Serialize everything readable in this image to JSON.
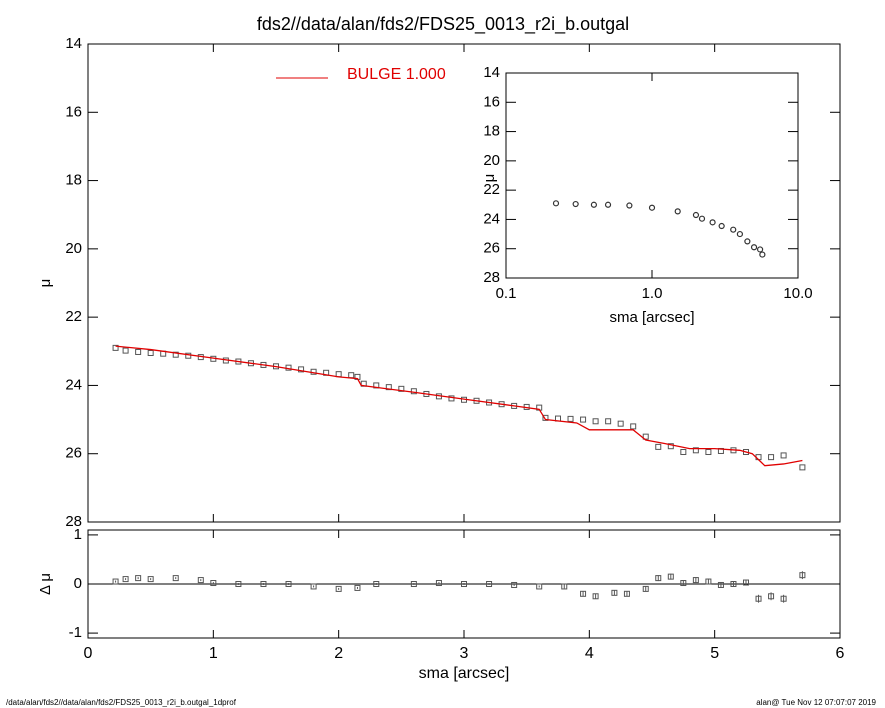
{
  "chart_data": [
    {
      "type": "scatter",
      "title": "fds2//data/alan/fds2/FDS25_0013_r2i_b.outgal",
      "ylabel": "μ",
      "xlim": [
        0,
        6
      ],
      "ylim": [
        14,
        28
      ],
      "invert_y": true,
      "yticks": [
        14,
        16,
        18,
        20,
        22,
        24,
        26,
        28
      ],
      "series": [
        {
          "style": "square",
          "color": "#555555",
          "x": [
            0.22,
            0.3,
            0.4,
            0.5,
            0.6,
            0.7,
            0.8,
            0.9,
            1.0,
            1.1,
            1.2,
            1.3,
            1.4,
            1.5,
            1.6,
            1.7,
            1.8,
            1.9,
            2.0,
            2.1,
            2.15,
            2.2,
            2.3,
            2.4,
            2.5,
            2.6,
            2.7,
            2.8,
            2.9,
            3.0,
            3.1,
            3.2,
            3.3,
            3.4,
            3.5,
            3.6,
            3.65,
            3.75,
            3.85,
            3.95,
            4.05,
            4.15,
            4.25,
            4.35,
            4.45,
            4.55,
            4.65,
            4.75,
            4.85,
            4.95,
            5.05,
            5.15,
            5.25,
            5.35,
            5.45,
            5.55,
            5.7
          ],
          "values": [
            22.9,
            22.98,
            23.02,
            23.05,
            23.07,
            23.1,
            23.13,
            23.17,
            23.22,
            23.27,
            23.3,
            23.35,
            23.4,
            23.44,
            23.48,
            23.53,
            23.6,
            23.63,
            23.67,
            23.7,
            23.75,
            23.95,
            24.0,
            24.05,
            24.1,
            24.17,
            24.25,
            24.32,
            24.38,
            24.42,
            24.45,
            24.5,
            24.55,
            24.6,
            24.63,
            24.65,
            24.95,
            24.97,
            24.98,
            25.0,
            25.05,
            25.05,
            25.12,
            25.2,
            25.5,
            25.8,
            25.78,
            25.95,
            25.9,
            25.95,
            25.92,
            25.9,
            25.95,
            26.1,
            26.1,
            26.05,
            26.4
          ]
        },
        {
          "style": "line",
          "name": "BULGE  1.000",
          "color": "#e00000",
          "x": [
            0.22,
            0.5,
            1.0,
            1.5,
            2.0,
            2.15,
            2.18,
            2.6,
            3.0,
            3.4,
            3.6,
            3.65,
            3.9,
            4.0,
            4.35,
            4.45,
            4.6,
            4.8,
            5.0,
            5.2,
            5.3,
            5.4,
            5.55,
            5.7
          ],
          "values": [
            22.85,
            22.95,
            23.2,
            23.45,
            23.75,
            23.8,
            24.0,
            24.2,
            24.4,
            24.6,
            24.7,
            25.0,
            25.1,
            25.3,
            25.3,
            25.6,
            25.7,
            25.85,
            25.85,
            25.9,
            26.0,
            26.35,
            26.3,
            26.2
          ]
        }
      ]
    },
    {
      "type": "scatter",
      "ylabel": "μ",
      "xlabel": "sma [arcsec]",
      "xscale": "log",
      "xlim": [
        0.1,
        10
      ],
      "xticks": [
        {
          "value": 0.1,
          "label": "0.1"
        },
        {
          "value": 1,
          "label": "1.0"
        },
        {
          "value": 10,
          "label": "10.0"
        }
      ],
      "ylim": [
        14,
        28
      ],
      "invert_y": true,
      "yticks": [
        14,
        16,
        18,
        20,
        22,
        24,
        26,
        28
      ],
      "series": [
        {
          "style": "circle",
          "color": "#333333",
          "x": [
            0.22,
            0.3,
            0.4,
            0.5,
            0.7,
            1.0,
            1.5,
            2.0,
            2.2,
            2.6,
            3.0,
            3.6,
            4.0,
            4.5,
            5.0,
            5.5,
            5.7
          ],
          "values": [
            22.9,
            22.95,
            23.0,
            23.0,
            23.05,
            23.2,
            23.45,
            23.7,
            23.95,
            24.2,
            24.45,
            24.7,
            25.0,
            25.5,
            25.9,
            26.05,
            26.4
          ]
        }
      ]
    },
    {
      "type": "errorbar",
      "ylabel": "Δ μ",
      "xlabel": "sma [arcsec]",
      "xlim": [
        0,
        6
      ],
      "xticks": [
        0,
        1,
        2,
        3,
        4,
        5,
        6
      ],
      "ylim": [
        -1.1,
        1.1
      ],
      "yticks": [
        -1,
        0,
        1
      ],
      "hline": 0,
      "series": [
        {
          "style": "square",
          "color": "#555555",
          "x": [
            0.22,
            0.3,
            0.4,
            0.5,
            0.7,
            0.9,
            1.0,
            1.2,
            1.4,
            1.6,
            1.8,
            2.0,
            2.15,
            2.3,
            2.6,
            2.8,
            3.0,
            3.2,
            3.4,
            3.6,
            3.8,
            3.95,
            4.05,
            4.2,
            4.3,
            4.45,
            4.55,
            4.65,
            4.75,
            4.85,
            4.95,
            5.05,
            5.15,
            5.25,
            5.35,
            5.45,
            5.55,
            5.7
          ],
          "values": [
            0.05,
            0.1,
            0.12,
            0.1,
            0.12,
            0.08,
            0.02,
            0,
            0,
            0,
            -0.05,
            -0.1,
            -0.08,
            0,
            0,
            0.02,
            0,
            0,
            -0.02,
            -0.05,
            -0.05,
            -0.2,
            -0.25,
            -0.18,
            -0.2,
            -0.1,
            0.12,
            0.15,
            0.02,
            0.08,
            0.05,
            -0.02,
            0,
            0.03,
            -0.3,
            -0.25,
            -0.3,
            0.18
          ],
          "errors": [
            0.02,
            0.02,
            0.02,
            0.02,
            0.02,
            0.02,
            0.02,
            0.02,
            0.02,
            0.02,
            0.02,
            0.02,
            0.02,
            0.02,
            0.02,
            0.02,
            0.02,
            0.02,
            0.02,
            0.02,
            0.04,
            0.05,
            0.05,
            0.05,
            0.05,
            0.05,
            0.06,
            0.06,
            0.06,
            0.06,
            0.06,
            0.06,
            0.06,
            0.06,
            0.08,
            0.08,
            0.08,
            0.08
          ]
        }
      ]
    }
  ],
  "footer": {
    "left": "/data/alan/fds2//data/alan/fds2/FDS25_0013_r2i_b.outgal_1dprof",
    "right": "alan@  Tue Nov 12 07:07:07 2019"
  }
}
